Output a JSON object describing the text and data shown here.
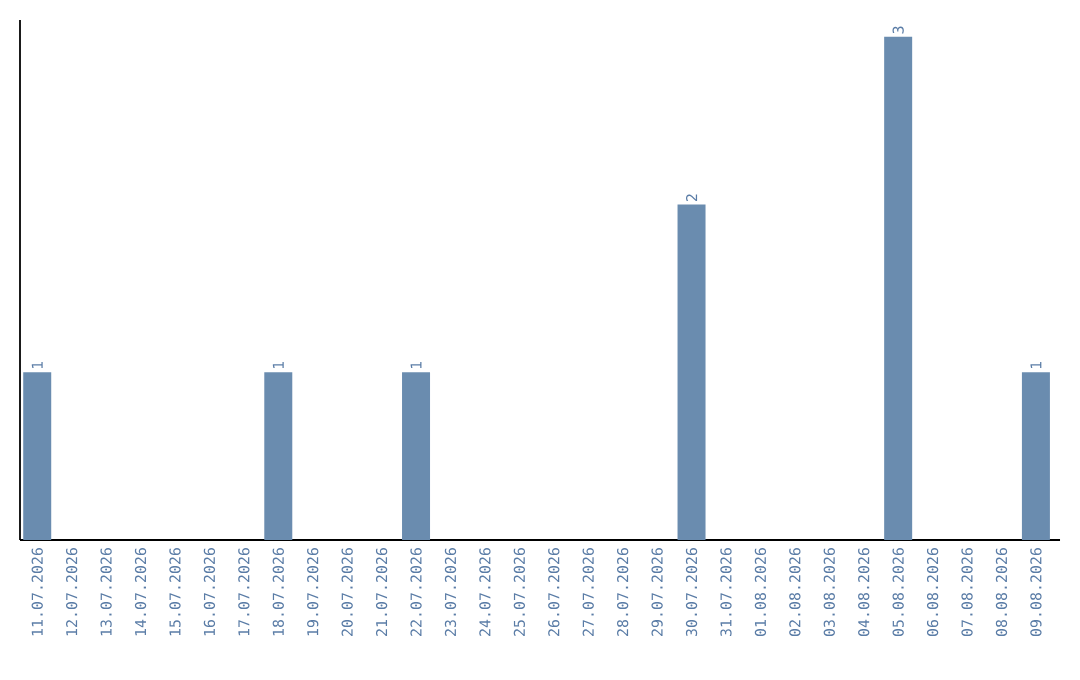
{
  "chart_data": {
    "type": "bar",
    "categories": [
      "11.07.2026",
      "12.07.2026",
      "13.07.2026",
      "14.07.2026",
      "15.07.2026",
      "16.07.2026",
      "17.07.2026",
      "18.07.2026",
      "19.07.2026",
      "20.07.2026",
      "21.07.2026",
      "22.07.2026",
      "23.07.2026",
      "24.07.2026",
      "25.07.2026",
      "26.07.2026",
      "27.07.2026",
      "28.07.2026",
      "29.07.2026",
      "30.07.2026",
      "31.07.2026",
      "01.08.2026",
      "02.08.2026",
      "03.08.2026",
      "04.08.2026",
      "05.08.2026",
      "06.08.2026",
      "07.08.2026",
      "08.08.2026",
      "09.08.2026"
    ],
    "values": [
      1,
      0,
      0,
      0,
      0,
      0,
      0,
      1,
      0,
      0,
      0,
      1,
      0,
      0,
      0,
      0,
      0,
      0,
      0,
      2,
      0,
      0,
      0,
      0,
      0,
      3,
      0,
      0,
      0,
      1
    ],
    "value_labels": [
      "1",
      null,
      null,
      null,
      null,
      null,
      null,
      "1",
      null,
      null,
      null,
      "1",
      null,
      null,
      null,
      null,
      null,
      null,
      null,
      "2",
      null,
      null,
      null,
      null,
      null,
      "3",
      null,
      null,
      null,
      "1"
    ],
    "color": "#6a8caf",
    "ylim": [
      0,
      3.1
    ],
    "tick_labels": "x",
    "grid": false
  }
}
